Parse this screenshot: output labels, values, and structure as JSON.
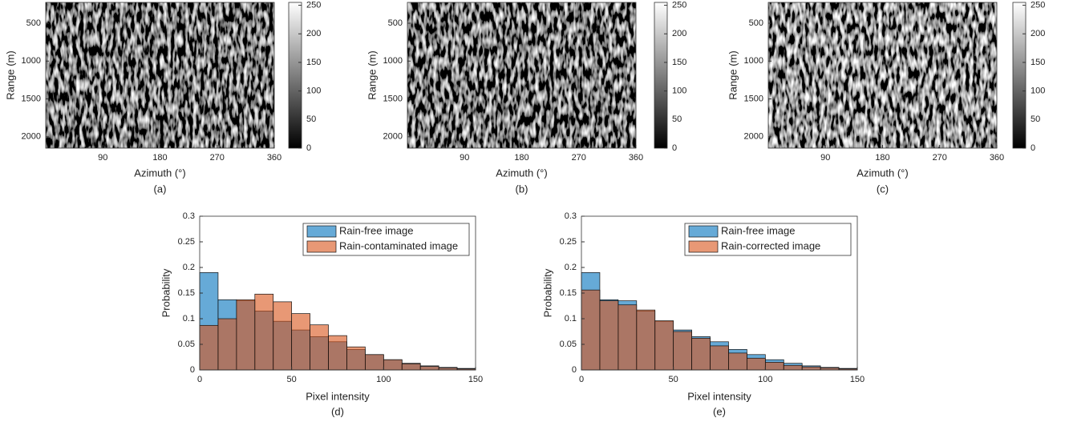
{
  "chart_data": [
    {
      "type": "image",
      "caption": "(a)",
      "x_label": "Azimuth (°)",
      "y_label": "Range (m)",
      "xlim": [
        0,
        360
      ],
      "xticks": [
        90,
        180,
        270,
        360
      ],
      "ylim": [
        225,
        2150
      ],
      "yticks": [
        500,
        1000,
        1500,
        2000
      ],
      "y_reversed": true,
      "clim": [
        0,
        255
      ],
      "cticks": [
        0,
        50,
        100,
        150,
        200,
        250
      ]
    },
    {
      "type": "image",
      "caption": "(b)",
      "x_label": "Azimuth (°)",
      "y_label": "Range (m)",
      "xlim": [
        0,
        360
      ],
      "xticks": [
        90,
        180,
        270,
        360
      ],
      "ylim": [
        225,
        2150
      ],
      "yticks": [
        500,
        1000,
        1500,
        2000
      ],
      "y_reversed": true,
      "clim": [
        0,
        255
      ],
      "cticks": [
        0,
        50,
        100,
        150,
        200,
        250
      ]
    },
    {
      "type": "image",
      "caption": "(c)",
      "x_label": "Azimuth (°)",
      "y_label": "Range (m)",
      "xlim": [
        0,
        360
      ],
      "xticks": [
        90,
        180,
        270,
        360
      ],
      "ylim": [
        225,
        2150
      ],
      "yticks": [
        500,
        1000,
        1500,
        2000
      ],
      "y_reversed": true,
      "clim": [
        0,
        255
      ],
      "cticks": [
        0,
        50,
        100,
        150,
        200,
        250
      ]
    },
    {
      "type": "histogram",
      "caption": "(d)",
      "x_label": "Pixel intensity",
      "y_label": "Probability",
      "bins": [
        0,
        10,
        20,
        30,
        40,
        50,
        60,
        70,
        80,
        90,
        100,
        110,
        120,
        130,
        140,
        150
      ],
      "series": [
        {
          "name": "Rain-free image",
          "color": "#0072bd",
          "values": [
            0.19,
            0.137,
            0.135,
            0.115,
            0.095,
            0.078,
            0.065,
            0.055,
            0.04,
            0.03,
            0.02,
            0.013,
            0.008,
            0.005,
            0.003
          ]
        },
        {
          "name": "Rain-contaminated image",
          "color": "#d95319",
          "values": [
            0.087,
            0.1,
            0.137,
            0.148,
            0.133,
            0.11,
            0.088,
            0.067,
            0.045,
            0.03,
            0.02,
            0.012,
            0.007,
            0.004,
            0.002
          ]
        }
      ],
      "xlim": [
        0,
        150
      ],
      "xticks": [
        0,
        50,
        100,
        150
      ],
      "ylim": [
        0,
        0.3
      ],
      "yticks": [
        0,
        0.05,
        0.1,
        0.15,
        0.2,
        0.25,
        0.3
      ],
      "legend": "upper right"
    },
    {
      "type": "histogram",
      "caption": "(e)",
      "x_label": "Pixel intensity",
      "y_label": "Probability",
      "bins": [
        0,
        10,
        20,
        30,
        40,
        50,
        60,
        70,
        80,
        90,
        100,
        110,
        120,
        130,
        140,
        150
      ],
      "series": [
        {
          "name": "Rain-free image",
          "color": "#0072bd",
          "values": [
            0.19,
            0.137,
            0.135,
            0.115,
            0.095,
            0.078,
            0.065,
            0.055,
            0.04,
            0.03,
            0.02,
            0.013,
            0.008,
            0.005,
            0.003
          ]
        },
        {
          "name": "Rain-corrected image",
          "color": "#d95319",
          "values": [
            0.156,
            0.135,
            0.127,
            0.117,
            0.096,
            0.075,
            0.062,
            0.047,
            0.033,
            0.023,
            0.015,
            0.009,
            0.006,
            0.004,
            0.002
          ]
        }
      ],
      "xlim": [
        0,
        150
      ],
      "xticks": [
        0,
        50,
        100,
        150
      ],
      "ylim": [
        0,
        0.3
      ],
      "yticks": [
        0,
        0.05,
        0.1,
        0.15,
        0.2,
        0.25,
        0.3
      ],
      "legend": "upper right"
    }
  ]
}
